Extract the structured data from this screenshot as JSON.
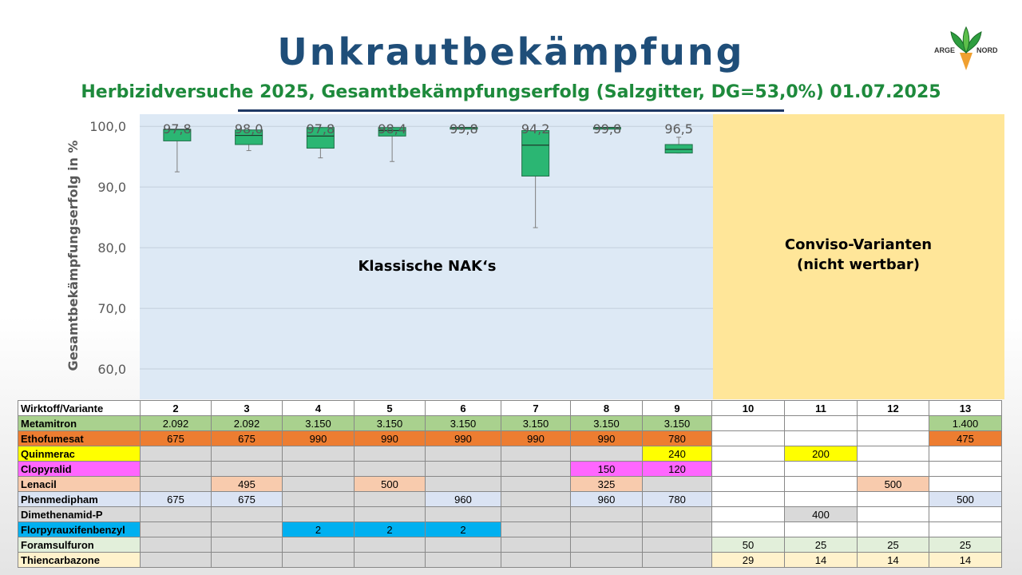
{
  "header": {
    "title": "Unkrautbekämpfung",
    "subtitle": "Herbizidversuche 2025, Gesamtbekämpfungserfolg (Salzgitter, DG=53,0%) 01.07.2025",
    "logo_top": "ARGE",
    "logo_bottom": "NORD",
    "logo_icon": "beet-plant-icon"
  },
  "panels": {
    "classic_label": "Klassische NAK‘s",
    "conviso_label": "Conviso-Varianten\n(nicht wertbar)",
    "classic_color": "#dde9f5",
    "conviso_color": "#ffe699"
  },
  "chart_data": {
    "type": "box",
    "ylabel": "Gesamtbekämpfungserfolg in %",
    "ylim": [
      55,
      102
    ],
    "yticks": [
      "100,0",
      "90,0",
      "80,0",
      "70,0",
      "60,0"
    ],
    "ytick_values": [
      100,
      90,
      80,
      70,
      60
    ],
    "box_color": "#2bb673",
    "categories": [
      "2",
      "3",
      "4",
      "5",
      "6",
      "7",
      "8",
      "9"
    ],
    "boxes": [
      {
        "variant": "2",
        "min": 92.5,
        "q1": 97.6,
        "median": 99.5,
        "q3": 99.5,
        "max": 99.5,
        "mean_label": "97,8"
      },
      {
        "variant": "3",
        "min": 96.0,
        "q1": 97.0,
        "median": 98.5,
        "q3": 99.4,
        "max": 99.4,
        "mean_label": "98,0"
      },
      {
        "variant": "4",
        "min": 94.8,
        "q1": 96.4,
        "median": 98.4,
        "q3": 99.8,
        "max": 99.8,
        "mean_label": "97,8"
      },
      {
        "variant": "5",
        "min": 94.2,
        "q1": 98.4,
        "median": 99.3,
        "q3": 99.8,
        "max": 99.8,
        "mean_label": "98,4"
      },
      {
        "variant": "6",
        "min": 99.8,
        "q1": 99.8,
        "median": 99.8,
        "q3": 99.8,
        "max": 99.8,
        "mean_label": "99,8"
      },
      {
        "variant": "7",
        "min": 83.3,
        "q1": 91.8,
        "median": 96.9,
        "q3": 99.3,
        "max": 99.3,
        "mean_label": "94,2"
      },
      {
        "variant": "8",
        "min": 99.8,
        "q1": 99.8,
        "median": 99.8,
        "q3": 99.8,
        "max": 99.8,
        "mean_label": "99,8"
      },
      {
        "variant": "9",
        "min": 95.6,
        "q1": 95.6,
        "median": 96.2,
        "q3": 97.0,
        "max": 98.2,
        "mean_label": "96,5"
      }
    ]
  },
  "table": {
    "header_label": "Wirktoff/Variante",
    "variants": [
      "2",
      "3",
      "4",
      "5",
      "6",
      "7",
      "8",
      "9",
      "10",
      "11",
      "12",
      "13"
    ],
    "rows": [
      {
        "name": "Metamitron",
        "color": "#a9d18e",
        "values": [
          "2.092",
          "2.092",
          "3.150",
          "3.150",
          "3.150",
          "3.150",
          "3.150",
          "3.150",
          "",
          "",
          "",
          "1.400"
        ]
      },
      {
        "name": "Ethofumesat",
        "color": "#ed7d31",
        "values": [
          "675",
          "675",
          "990",
          "990",
          "990",
          "990",
          "990",
          "780",
          "",
          "",
          "",
          "475"
        ]
      },
      {
        "name": "Quinmerac",
        "color": "#ffff00",
        "values": [
          "",
          "",
          "",
          "",
          "",
          "",
          "",
          "240",
          "",
          "200",
          "",
          ""
        ]
      },
      {
        "name": "Clopyralid",
        "color": "#ff66ff",
        "values": [
          "",
          "",
          "",
          "",
          "",
          "",
          "150",
          "120",
          "",
          "",
          "",
          ""
        ]
      },
      {
        "name": "Lenacil",
        "color": "#f8cbad",
        "values": [
          "",
          "495",
          "",
          "500",
          "",
          "",
          "325",
          "",
          "",
          "",
          "500",
          ""
        ]
      },
      {
        "name": "Phenmedipham",
        "color": "#dae3f3",
        "values": [
          "675",
          "675",
          "",
          "",
          "960",
          "",
          "960",
          "780",
          "",
          "",
          "",
          "500"
        ]
      },
      {
        "name": "Dimethenamid-P",
        "color": "#d9d9d9",
        "values": [
          "",
          "",
          "",
          "",
          "",
          "",
          "",
          "",
          "",
          "400",
          "",
          ""
        ]
      },
      {
        "name": "Florpyrauxifenbenzyl",
        "color": "#00b0f0",
        "values": [
          "",
          "",
          "2",
          "2",
          "2",
          "",
          "",
          "",
          "",
          "",
          "",
          ""
        ]
      },
      {
        "name": "Foramsulfuron",
        "color": "#e2efda",
        "values": [
          "",
          "",
          "",
          "",
          "",
          "",
          "",
          "",
          "50",
          "25",
          "25",
          "25"
        ]
      },
      {
        "name": "Thiencarbazone",
        "color": "#fff2cc",
        "values": [
          "",
          "",
          "",
          "",
          "",
          "",
          "",
          "",
          "29",
          "14",
          "14",
          "14"
        ]
      }
    ]
  }
}
